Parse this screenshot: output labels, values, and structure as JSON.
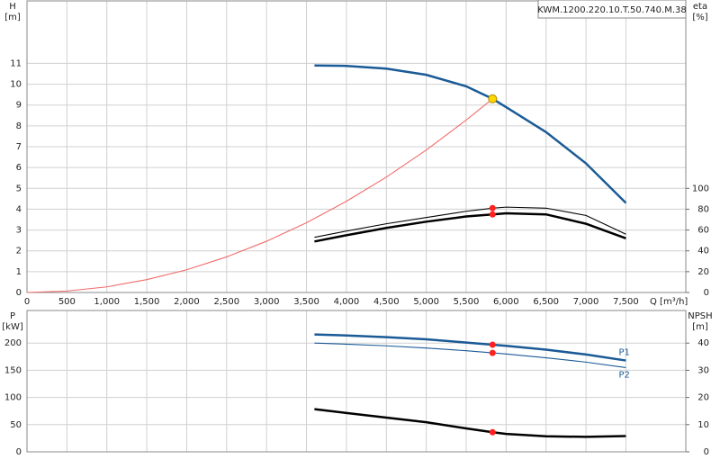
{
  "chart_data": [
    {
      "type": "line",
      "title": "KWM.1200.220.10.T.50.740.M.38",
      "y_label": "H",
      "y_unit": "[m]",
      "y2_label": "eta",
      "y2_unit": "[%]",
      "x_label": "Q [m³/h]",
      "xlim": [
        0,
        8250
      ],
      "xticks": [
        0,
        500,
        {
          "value": 1000,
          "label": "1,000"
        },
        {
          "value": 1500,
          "label": "1,500"
        },
        {
          "value": 2000,
          "label": "2,000"
        },
        {
          "value": 2500,
          "label": "2,500"
        },
        {
          "value": 3000,
          "label": "3,000"
        },
        {
          "value": 3500,
          "label": "3,500"
        },
        {
          "value": 4000,
          "label": "4,000"
        },
        {
          "value": 4500,
          "label": "4,500"
        },
        {
          "value": 5000,
          "label": "5,000"
        },
        {
          "value": 5500,
          "label": "5,500"
        },
        {
          "value": 6000,
          "label": "6,000"
        },
        {
          "value": 6500,
          "label": "6,500"
        },
        {
          "value": 7000,
          "label": "7,000"
        },
        {
          "value": 7500,
          "label": "7,500"
        }
      ],
      "xtick_labels": true,
      "ylim": [
        0,
        14
      ],
      "yticks": [
        0,
        1,
        2,
        3,
        4,
        5,
        6,
        7,
        8,
        9,
        10,
        11
      ],
      "y2lim": [
        0,
        280
      ],
      "y2ticks": [
        0,
        20,
        40,
        60,
        80,
        100
      ],
      "grid": true,
      "duty_point_x": 5830,
      "series": [
        {
          "color": "#f26b6b",
          "style": "thin",
          "marker_color": "#ffd700",
          "x": [
            0,
            500,
            1000,
            1500,
            2000,
            2500,
            3000,
            3500,
            4000,
            4500,
            5000,
            5500,
            5830
          ],
          "values": [
            0,
            0.07,
            0.27,
            0.62,
            1.09,
            1.71,
            2.46,
            3.35,
            4.38,
            5.54,
            6.84,
            8.28,
            9.3
          ]
        },
        {
          "color": "#1a5a96",
          "style": "thick",
          "x": [
            3600,
            4000,
            4500,
            5000,
            5500,
            5830,
            6000,
            6500,
            7000,
            7500
          ],
          "values": [
            10.9,
            10.88,
            10.75,
            10.45,
            9.9,
            9.3,
            8.9,
            7.7,
            6.2,
            4.3
          ]
        },
        {
          "color": "#000000",
          "style": "thin",
          "axis": "y2",
          "marker_color": "#ff2020",
          "x": [
            3600,
            4000,
            4500,
            5000,
            5500,
            5830,
            6000,
            6500,
            7000,
            7500
          ],
          "values": [
            53,
            59,
            66,
            72,
            78,
            81,
            82,
            81,
            74,
            56
          ]
        },
        {
          "color": "#000000",
          "style": "thick",
          "axis": "y2",
          "marker_color": "#ff2020",
          "x": [
            3600,
            4000,
            4500,
            5000,
            5500,
            5830,
            6000,
            6500,
            7000,
            7500
          ],
          "values": [
            49,
            55,
            62,
            68,
            73,
            75,
            76,
            75,
            66,
            52
          ]
        }
      ]
    },
    {
      "type": "line",
      "y_label": "P",
      "y_unit": "[kW]",
      "y2_label": "NPSH",
      "y2_unit": "[m]",
      "xlim": [
        0,
        8250
      ],
      "xticks": [
        0,
        500,
        1000,
        1500,
        2000,
        2500,
        3000,
        3500,
        4000,
        4500,
        5000,
        5500,
        6000,
        6500,
        7000,
        7500
      ],
      "xtick_labels": false,
      "ylim": [
        0,
        260
      ],
      "yticks": [
        0,
        50,
        100,
        150,
        200
      ],
      "y2lim": [
        0,
        52
      ],
      "y2ticks": [
        0,
        10,
        20,
        30,
        40
      ],
      "grid": true,
      "duty_point_x": 5830,
      "series": [
        {
          "name": "P1",
          "color": "#1a5a96",
          "style": "thick",
          "marker_color": "#ff2020",
          "x": [
            3600,
            4000,
            4500,
            5000,
            5500,
            5830,
            6000,
            6500,
            7000,
            7500
          ],
          "values": [
            216,
            214,
            211,
            207,
            201,
            197,
            195,
            188,
            179,
            168
          ]
        },
        {
          "name": "P2",
          "color": "#1a5a96",
          "style": "thin",
          "marker_color": "#ff2020",
          "x": [
            3600,
            4000,
            4500,
            5000,
            5500,
            5830,
            6000,
            6500,
            7000,
            7500
          ],
          "values": [
            200,
            198,
            195,
            191,
            186,
            182,
            180,
            173,
            165,
            155
          ]
        },
        {
          "color": "#000000",
          "style": "thick",
          "axis": "y2",
          "marker_color": "#ff2020",
          "x": [
            3600,
            4000,
            4500,
            5000,
            5500,
            5830,
            6000,
            6500,
            7000,
            7500
          ],
          "values": [
            15.7,
            14.3,
            12.6,
            10.9,
            8.6,
            7.2,
            6.6,
            5.7,
            5.5,
            5.8
          ]
        }
      ]
    }
  ]
}
